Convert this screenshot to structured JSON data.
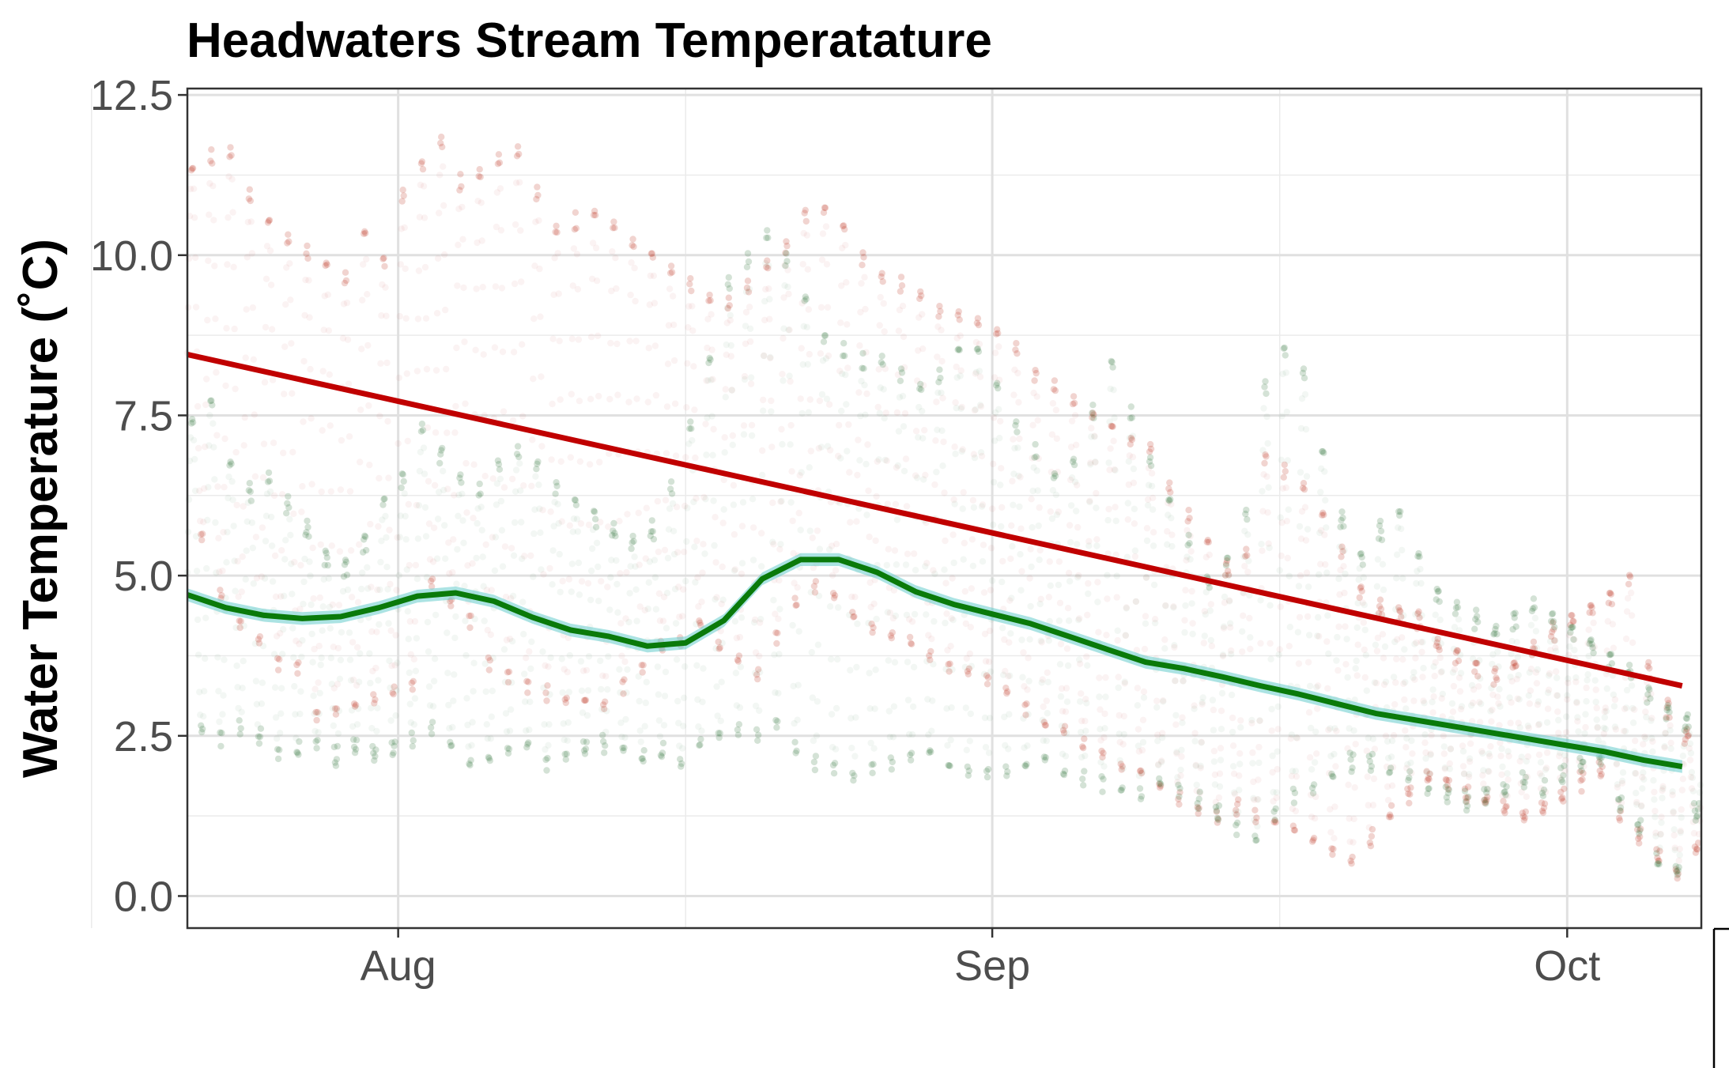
{
  "chart_data": {
    "type": "scatter",
    "title": "Headwaters Stream Temperatature",
    "xlabel": "",
    "ylabel": "Water Temperature (˚C)",
    "x_domain": [
      "2023-07-21",
      "2023-10-08"
    ],
    "ylim": [
      -0.5,
      12.6
    ],
    "x_ticks": [
      {
        "date": "2023-08-01",
        "label": "Aug"
      },
      {
        "date": "2023-09-01",
        "label": "Sep"
      },
      {
        "date": "2023-10-01",
        "label": "Oct"
      }
    ],
    "y_ticks": [
      {
        "value": 0.0,
        "label": "0.0"
      },
      {
        "value": 2.5,
        "label": "2.5"
      },
      {
        "value": 5.0,
        "label": "5.0"
      },
      {
        "value": 7.5,
        "label": "7.5"
      },
      {
        "value": 10.0,
        "label": "10.0"
      },
      {
        "value": 12.5,
        "label": "12.5"
      }
    ],
    "grid": true,
    "legend": "none",
    "colors": {
      "red_points": "#c0392b",
      "green_points": "#3a7d44",
      "red_trend": "#c00000",
      "green_trend": "#0a7a0a",
      "green_band": "#66cccc"
    },
    "series": [
      {
        "kind": "points",
        "color": "red",
        "x": [
          "2023-07-21",
          "2023-07-22",
          "2023-07-23",
          "2023-07-24",
          "2023-07-25",
          "2023-07-26",
          "2023-07-27",
          "2023-07-28",
          "2023-07-29",
          "2023-07-30",
          "2023-07-31",
          "2023-08-01",
          "2023-08-02",
          "2023-08-03",
          "2023-08-04",
          "2023-08-05",
          "2023-08-06",
          "2023-08-07",
          "2023-08-08",
          "2023-08-09",
          "2023-08-10",
          "2023-08-11",
          "2023-08-12",
          "2023-08-13",
          "2023-08-14",
          "2023-08-15",
          "2023-08-16",
          "2023-08-17",
          "2023-08-18",
          "2023-08-19",
          "2023-08-20",
          "2023-08-21",
          "2023-08-22",
          "2023-08-23",
          "2023-08-24",
          "2023-08-25",
          "2023-08-26",
          "2023-08-27",
          "2023-08-28",
          "2023-08-29",
          "2023-08-30",
          "2023-08-31",
          "2023-09-01",
          "2023-09-02",
          "2023-09-03",
          "2023-09-04",
          "2023-09-05",
          "2023-09-06",
          "2023-09-07",
          "2023-09-08",
          "2023-09-09",
          "2023-09-10",
          "2023-09-11",
          "2023-09-12",
          "2023-09-13",
          "2023-09-14",
          "2023-09-15",
          "2023-09-16",
          "2023-09-17",
          "2023-09-18",
          "2023-09-19",
          "2023-09-20",
          "2023-09-21",
          "2023-09-22",
          "2023-09-23",
          "2023-09-24",
          "2023-09-25",
          "2023-09-26",
          "2023-09-27",
          "2023-09-28",
          "2023-09-29",
          "2023-09-30",
          "2023-10-01",
          "2023-10-02",
          "2023-10-03",
          "2023-10-04",
          "2023-10-05",
          "2023-10-06",
          "2023-10-07"
        ],
        "max": [
          11.4,
          11.6,
          11.7,
          11.0,
          10.6,
          10.3,
          10.1,
          9.9,
          9.7,
          10.4,
          10.0,
          11.0,
          11.5,
          11.8,
          11.2,
          11.4,
          11.6,
          11.7,
          11.0,
          10.5,
          10.6,
          10.7,
          10.5,
          10.3,
          10.1,
          9.8,
          9.6,
          9.4,
          9.3,
          9.6,
          9.9,
          10.2,
          10.7,
          10.8,
          10.5,
          10.0,
          9.7,
          9.6,
          9.4,
          9.2,
          9.1,
          9.0,
          8.9,
          8.6,
          8.2,
          8.0,
          7.8,
          7.6,
          7.4,
          7.2,
          7.0,
          6.4,
          6.0,
          5.6,
          5.2,
          5.4,
          6.9,
          6.7,
          6.4,
          6.0,
          5.4,
          4.9,
          4.6,
          4.5,
          4.4,
          4.0,
          3.8,
          3.6,
          3.5,
          3.7,
          3.9,
          4.2,
          4.4,
          4.6,
          4.8,
          5.0,
          3.6,
          3.0,
          2.6
        ],
        "min": [
          5.5,
          4.6,
          4.2,
          3.9,
          3.6,
          3.5,
          2.8,
          2.8,
          2.9,
          3.0,
          3.1,
          3.2,
          4.8,
          4.5,
          4.2,
          3.6,
          3.4,
          3.2,
          3.1,
          3.0,
          3.0,
          2.9,
          3.2,
          3.5,
          3.8,
          3.9,
          4.2,
          3.8,
          3.6,
          3.4,
          4.0,
          4.5,
          4.8,
          4.6,
          4.3,
          4.1,
          4.0,
          3.9,
          3.7,
          3.5,
          3.4,
          3.3,
          3.1,
          2.9,
          2.6,
          2.5,
          2.3,
          2.1,
          2.0,
          1.9,
          1.7,
          1.5,
          1.3,
          1.2,
          1.3,
          1.2,
          1.1,
          1.0,
          0.8,
          0.6,
          0.5,
          0.8,
          1.2,
          1.5,
          1.8,
          1.7,
          1.5,
          1.4,
          1.3,
          1.2,
          1.3,
          1.5,
          1.7,
          1.9,
          1.2,
          0.8,
          0.5,
          0.3,
          0.7
        ]
      },
      {
        "kind": "points",
        "color": "green",
        "x": [
          "2023-07-21",
          "2023-07-22",
          "2023-07-23",
          "2023-07-24",
          "2023-07-25",
          "2023-07-26",
          "2023-07-27",
          "2023-07-28",
          "2023-07-29",
          "2023-07-30",
          "2023-07-31",
          "2023-08-01",
          "2023-08-02",
          "2023-08-03",
          "2023-08-04",
          "2023-08-05",
          "2023-08-06",
          "2023-08-07",
          "2023-08-08",
          "2023-08-09",
          "2023-08-10",
          "2023-08-11",
          "2023-08-12",
          "2023-08-13",
          "2023-08-14",
          "2023-08-15",
          "2023-08-16",
          "2023-08-17",
          "2023-08-18",
          "2023-08-19",
          "2023-08-20",
          "2023-08-21",
          "2023-08-22",
          "2023-08-23",
          "2023-08-24",
          "2023-08-25",
          "2023-08-26",
          "2023-08-27",
          "2023-08-28",
          "2023-08-29",
          "2023-08-30",
          "2023-08-31",
          "2023-09-01",
          "2023-09-02",
          "2023-09-03",
          "2023-09-04",
          "2023-09-05",
          "2023-09-06",
          "2023-09-07",
          "2023-09-08",
          "2023-09-09",
          "2023-09-10",
          "2023-09-11",
          "2023-09-12",
          "2023-09-13",
          "2023-09-14",
          "2023-09-15",
          "2023-09-16",
          "2023-09-17",
          "2023-09-18",
          "2023-09-19",
          "2023-09-20",
          "2023-09-21",
          "2023-09-22",
          "2023-09-23",
          "2023-09-24",
          "2023-09-25",
          "2023-09-26",
          "2023-09-27",
          "2023-09-28",
          "2023-09-29",
          "2023-09-30",
          "2023-10-01",
          "2023-10-02",
          "2023-10-03",
          "2023-10-04",
          "2023-10-05",
          "2023-10-06",
          "2023-10-07"
        ],
        "max": [
          7.5,
          7.8,
          6.8,
          6.4,
          6.6,
          6.2,
          5.8,
          5.4,
          5.2,
          5.6,
          6.2,
          6.6,
          7.3,
          7.0,
          6.6,
          6.4,
          6.8,
          7.0,
          6.8,
          6.4,
          6.2,
          6.0,
          5.8,
          5.6,
          5.8,
          6.4,
          7.4,
          8.4,
          9.6,
          10.0,
          10.4,
          10.0,
          9.4,
          8.8,
          8.6,
          8.4,
          8.4,
          8.2,
          8.0,
          8.2,
          8.6,
          8.6,
          8.0,
          7.4,
          7.0,
          6.6,
          6.8,
          7.6,
          8.4,
          7.6,
          6.8,
          6.2,
          5.6,
          5.0,
          5.3,
          6.0,
          8.0,
          8.6,
          8.2,
          7.0,
          6.0,
          5.4,
          5.8,
          6.0,
          5.4,
          4.8,
          4.6,
          4.4,
          4.2,
          4.4,
          4.6,
          4.4,
          4.2,
          4.0,
          3.8,
          3.6,
          3.2,
          3.0,
          2.8
        ],
        "min": [
          2.5,
          2.4,
          2.6,
          2.4,
          2.2,
          2.2,
          2.3,
          2.1,
          2.2,
          2.1,
          2.2,
          2.4,
          2.6,
          2.3,
          2.0,
          2.1,
          2.2,
          2.3,
          2.0,
          2.1,
          2.2,
          2.3,
          2.2,
          2.1,
          2.2,
          2.0,
          2.3,
          2.4,
          2.5,
          2.4,
          2.6,
          2.2,
          2.0,
          1.9,
          1.8,
          1.9,
          2.0,
          2.1,
          2.2,
          2.0,
          1.9,
          1.8,
          1.9,
          2.0,
          2.1,
          1.9,
          1.8,
          1.7,
          1.6,
          1.5,
          1.7,
          1.6,
          1.4,
          1.2,
          1.0,
          0.8,
          1.2,
          1.5,
          1.6,
          1.8,
          2.0,
          2.0,
          1.9,
          1.8,
          1.6,
          1.5,
          1.4,
          1.5,
          1.6,
          1.7,
          1.6,
          1.8,
          2.0,
          2.1,
          1.4,
          1.0,
          0.5,
          0.3,
          1.2
        ]
      },
      {
        "kind": "line",
        "color": "red",
        "x": [
          "2023-07-21",
          "2023-10-07"
        ],
        "y": [
          8.45,
          3.28
        ]
      },
      {
        "kind": "smooth",
        "color": "green",
        "x": [
          "2023-07-21",
          "2023-07-23",
          "2023-07-25",
          "2023-07-27",
          "2023-07-29",
          "2023-07-31",
          "2023-08-02",
          "2023-08-04",
          "2023-08-06",
          "2023-08-08",
          "2023-08-10",
          "2023-08-12",
          "2023-08-14",
          "2023-08-16",
          "2023-08-18",
          "2023-08-20",
          "2023-08-22",
          "2023-08-24",
          "2023-08-26",
          "2023-08-28",
          "2023-08-30",
          "2023-09-01",
          "2023-09-03",
          "2023-09-05",
          "2023-09-07",
          "2023-09-09",
          "2023-09-11",
          "2023-09-13",
          "2023-09-15",
          "2023-09-17",
          "2023-09-19",
          "2023-09-21",
          "2023-09-23",
          "2023-09-25",
          "2023-09-27",
          "2023-09-29",
          "2023-10-01",
          "2023-10-03",
          "2023-10-05",
          "2023-10-07"
        ],
        "y": [
          4.7,
          4.5,
          4.38,
          4.33,
          4.36,
          4.5,
          4.68,
          4.73,
          4.6,
          4.35,
          4.15,
          4.05,
          3.9,
          3.95,
          4.3,
          4.95,
          5.25,
          5.25,
          5.05,
          4.75,
          4.55,
          4.4,
          4.25,
          4.05,
          3.85,
          3.65,
          3.55,
          3.42,
          3.28,
          3.15,
          3.0,
          2.85,
          2.75,
          2.65,
          2.55,
          2.45,
          2.35,
          2.25,
          2.12,
          2.02
        ],
        "band": 0.1
      }
    ]
  }
}
